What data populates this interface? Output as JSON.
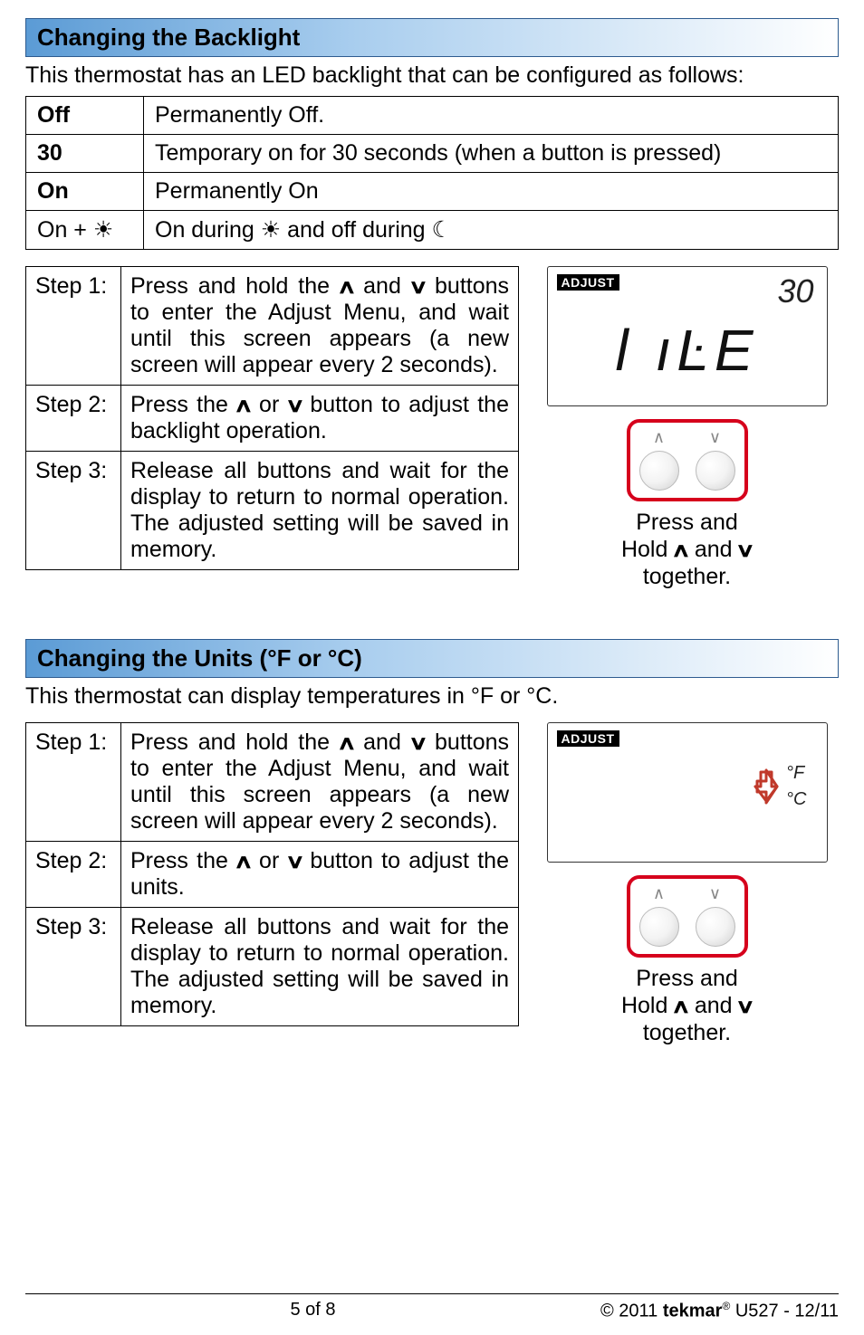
{
  "colors": {
    "header_gradient_from": "#5b9bd5",
    "header_gradient_to": "#ffffff",
    "header_border": "#2e5b8f",
    "button_box_border": "#d6001c",
    "text": "#000000",
    "lcd_border": "#333333"
  },
  "glyphs": {
    "up": "∧",
    "down": "∨",
    "sun": "☀",
    "moon": "☾",
    "deg": "°"
  },
  "section1": {
    "title": "Changing the Backlight",
    "intro": "This thermostat has an LED backlight that can be configured as follows:",
    "rows": [
      {
        "key": "Off",
        "desc": "Permanently Off."
      },
      {
        "key": "30",
        "desc": "Temporary on for 30 seconds (when a button is pressed)"
      },
      {
        "key": "On",
        "desc": "Permanently On"
      },
      {
        "key": "On + {sun}",
        "desc": "On during {sun} and off during {moon}"
      }
    ],
    "steps": [
      {
        "label": "Step 1:",
        "text": "Press and hold the {up} and {down} buttons to enter the Adjust Menu, and wait until this screen appears (a new screen will appear every 2 seconds)."
      },
      {
        "label": "Step 2:",
        "text": "Press the {up} or {down} button to adjust the backlight operation."
      },
      {
        "label": "Step 3:",
        "text": "Release all buttons and wait for the display to return to normal operation. The adjusted setting will be saved in memory."
      }
    ],
    "display": {
      "adjust_label": "ADJUST",
      "top_right": "30",
      "main_text": "l ıĿE"
    },
    "caption": "Press and\nHold  {up} and {down}\ntogether."
  },
  "section2": {
    "title": "Changing the Units (°F or °C)",
    "intro": "This thermostat can display temperatures in °F or °C.",
    "steps": [
      {
        "label": "Step 1:",
        "text": "Press and hold the {up} and {down} buttons to enter the Adjust Menu, and wait until this screen appears (a new screen will appear every 2 seconds)."
      },
      {
        "label": "Step 2:",
        "text": "Press the {up} or {down} button to adjust the units."
      },
      {
        "label": "Step 3:",
        "text": "Release all buttons and wait for the display to return to normal operation. The adjusted setting will be saved in memory."
      }
    ],
    "display": {
      "adjust_label": "ADJUST",
      "f_label": "°F",
      "c_label": "°C"
    },
    "caption": "Press and\nHold  {up} and {down}\ntogether."
  },
  "footer": {
    "page": "5 of 8",
    "copyright": "© 2011",
    "brand": "tekmar",
    "doc": " U527 - 12/11"
  }
}
